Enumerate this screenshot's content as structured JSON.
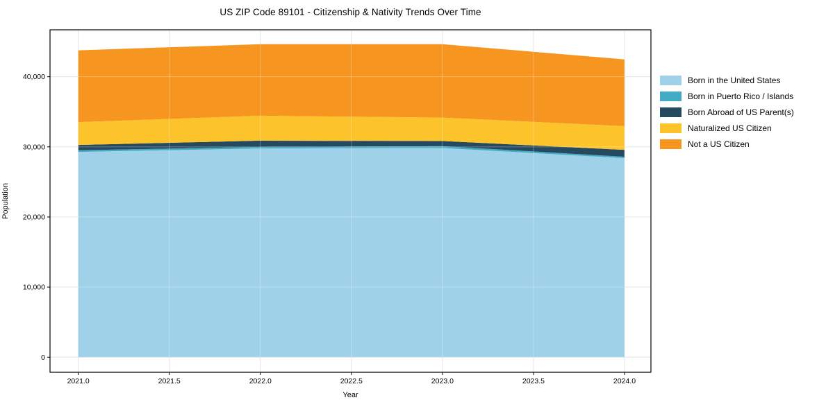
{
  "chart_data": {
    "type": "area",
    "stacked": true,
    "title": "US ZIP Code 89101 - Citizenship & Nativity Trends Over Time",
    "xlabel": "Year",
    "ylabel": "Population",
    "x": [
      2021,
      2022,
      2023,
      2024
    ],
    "series": [
      {
        "name": "Born in the United States",
        "color": "#9fd1e8",
        "values": [
          29280,
          29770,
          29840,
          28390
        ]
      },
      {
        "name": "Born in Puerto Rico / Islands",
        "color": "#44abc7",
        "values": [
          230,
          230,
          260,
          200
        ]
      },
      {
        "name": "Born Abroad of US Parent(s)",
        "color": "#254a5f",
        "values": [
          760,
          880,
          730,
          980
        ]
      },
      {
        "name": "Naturalized US Citizen",
        "color": "#fcc32b",
        "values": [
          3260,
          3560,
          3340,
          3390
        ]
      },
      {
        "name": "Not a US Citizen",
        "color": "#f6951f",
        "values": [
          10230,
          10200,
          10470,
          9510
        ]
      }
    ],
    "totals_by_year": [
      43760,
      44640,
      44640,
      42470
    ],
    "xticks": [
      2021.0,
      2021.5,
      2022.0,
      2022.5,
      2023.0,
      2023.5,
      2024.0
    ],
    "xtick_labels": [
      "2021.0",
      "2021.5",
      "2022.0",
      "2022.5",
      "2023.0",
      "2023.5",
      "2024.0"
    ],
    "yticks": [
      0,
      10000,
      20000,
      30000,
      40000
    ],
    "ytick_labels": [
      "0",
      "10,000",
      "20,000",
      "30,000",
      "40,000"
    ],
    "xlim": [
      2020.845,
      2024.145
    ],
    "ylim": [
      -2145,
      46690
    ],
    "grid": true,
    "legend_position": "right-outside",
    "colors": {
      "frame": "#000000",
      "grid_below": "#dcdcdc",
      "grid_above_areas": "rgba(255,255,255,0.30)",
      "background": "#ffffff"
    }
  }
}
